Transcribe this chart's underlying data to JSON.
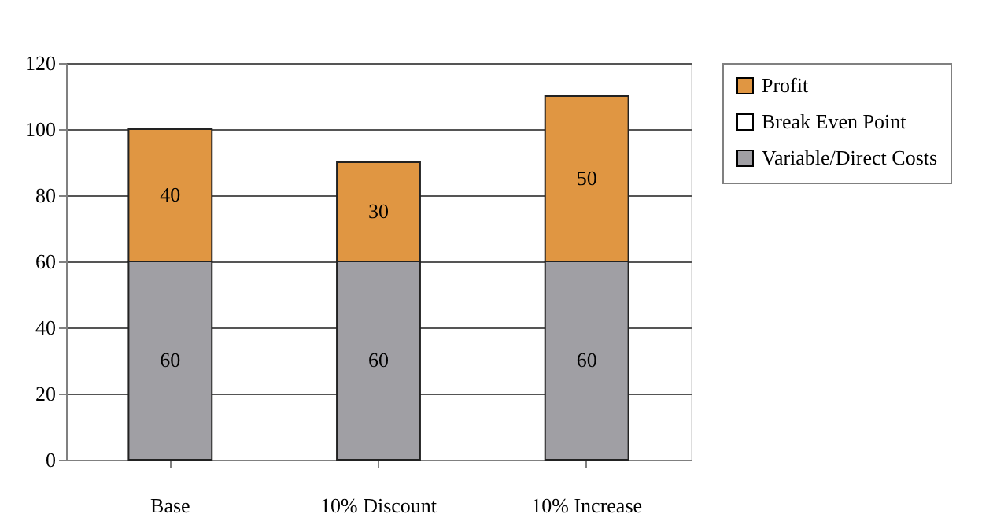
{
  "chart_data": {
    "type": "bar",
    "stacked": true,
    "categories": [
      "Base",
      "10% Discount",
      "10% Increase"
    ],
    "series": [
      {
        "name": "Variable/Direct Costs",
        "color": "#a09fa4",
        "values": [
          60,
          60,
          60
        ]
      },
      {
        "name": "Break Even Point",
        "color": "#ffffff",
        "values": [
          null,
          null,
          null
        ]
      },
      {
        "name": "Profit",
        "color": "#e09642",
        "values": [
          40,
          30,
          50
        ]
      }
    ],
    "ylim": [
      0,
      120
    ],
    "yticks": [
      0,
      20,
      40,
      60,
      80,
      100,
      120
    ],
    "grid": "y",
    "legend": "right",
    "data_labels": true
  }
}
